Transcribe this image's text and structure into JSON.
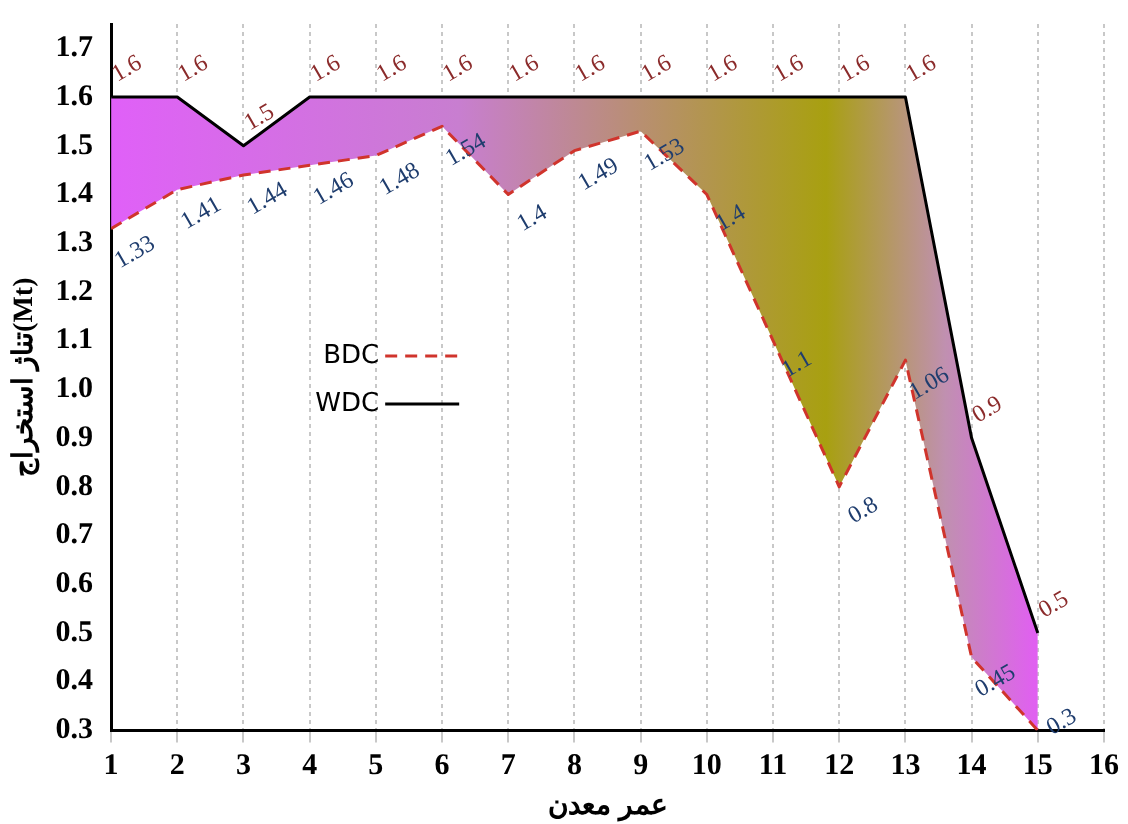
{
  "chart_data": {
    "type": "line",
    "xlabel": "عمر معدن",
    "ylabel": "تناژ استخراج(Mt)",
    "x": [
      1,
      2,
      3,
      4,
      5,
      6,
      7,
      8,
      9,
      10,
      11,
      12,
      13,
      14,
      15
    ],
    "series": [
      {
        "name": "BDC",
        "color": "#d0342c",
        "line_style": "dashed",
        "values": [
          1.33,
          1.41,
          1.44,
          1.46,
          1.48,
          1.54,
          1.4,
          1.49,
          1.53,
          1.4,
          1.1,
          0.8,
          1.06,
          0.45,
          0.3
        ]
      },
      {
        "name": "WDC",
        "color": "#000000",
        "line_style": "solid",
        "values": [
          1.6,
          1.6,
          1.5,
          1.6,
          1.6,
          1.6,
          1.6,
          1.6,
          1.6,
          1.6,
          1.6,
          1.6,
          1.6,
          0.9,
          0.5
        ]
      }
    ],
    "xlim": [
      1,
      16
    ],
    "xticks": [
      1,
      2,
      3,
      4,
      5,
      6,
      7,
      8,
      9,
      10,
      11,
      12,
      13,
      14,
      15,
      16
    ],
    "ylim": [
      0.3,
      1.75
    ],
    "yticks": [
      0.3,
      0.4,
      0.5,
      0.6,
      0.7,
      0.8,
      0.9,
      {
        "value": 1,
        "label": "1.0"
      },
      1.1,
      1.2,
      1.3,
      1.4,
      1.5,
      1.6,
      1.7
    ],
    "grid": "x",
    "legend": "center left",
    "marker": "none",
    "data_labels": true
  }
}
